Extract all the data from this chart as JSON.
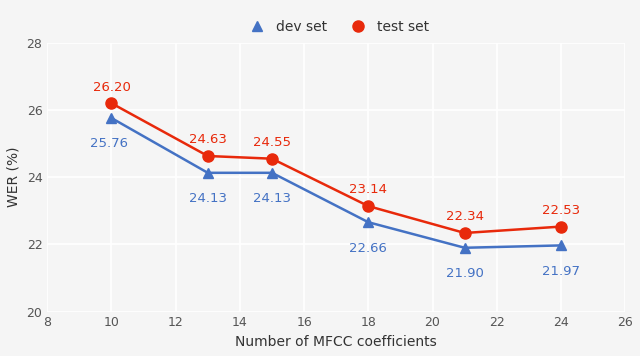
{
  "x": [
    10,
    13,
    15,
    18,
    21,
    24
  ],
  "dev_y": [
    25.76,
    24.13,
    24.13,
    22.66,
    21.9,
    21.97
  ],
  "test_y": [
    26.2,
    24.63,
    24.55,
    23.14,
    22.34,
    22.53
  ],
  "dev_labels": [
    "25.76",
    "24.13",
    "24.13",
    "22.66",
    "21.90",
    "21.97"
  ],
  "test_labels": [
    "26.20",
    "24.63",
    "24.55",
    "23.14",
    "22.34",
    "22.53"
  ],
  "dev_color": "#4472C4",
  "test_color": "#E8290B",
  "xlabel": "Number of MFCC coefficients",
  "ylabel": "WER (%)",
  "xlim": [
    8,
    26
  ],
  "ylim": [
    20,
    28
  ],
  "xticks": [
    8,
    10,
    12,
    14,
    16,
    18,
    20,
    22,
    24,
    26
  ],
  "yticks": [
    20,
    22,
    24,
    26,
    28
  ],
  "bg_color": "#F5F5F5",
  "grid_color": "#DDDDDD",
  "annotation_fontsize": 9.5,
  "axis_fontsize": 10,
  "tick_fontsize": 9,
  "legend_fontsize": 10
}
